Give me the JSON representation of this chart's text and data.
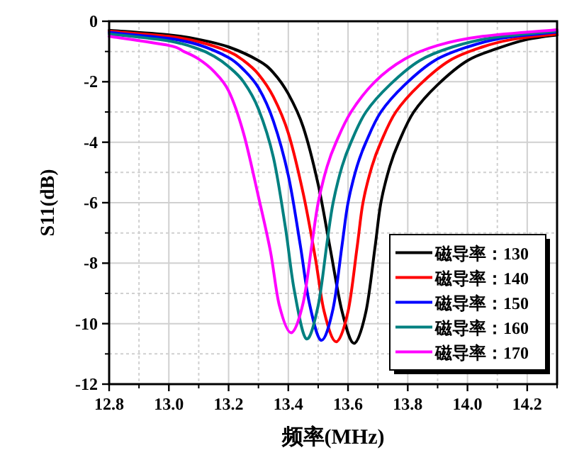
{
  "chart_data": {
    "type": "line",
    "xlabel": "频率(MHz)",
    "ylabel": "S11(dB)",
    "xlim": [
      12.8,
      14.3
    ],
    "ylim": [
      -12,
      0
    ],
    "xticks": [
      12.8,
      {
        "value": 13,
        "label": "13.0"
      },
      13.2,
      13.4,
      13.6,
      13.8,
      {
        "value": 14,
        "label": "14.0"
      },
      14.2
    ],
    "yticks": [
      -12,
      -10,
      -8,
      -6,
      -4,
      -2,
      0
    ],
    "grid": true,
    "legend": "bottom right",
    "marker": "none",
    "line_style": "solid",
    "series": [
      {
        "name": "磁导率：130",
        "color": "#000000",
        "x": [
          12.8,
          13.0,
          13.1,
          13.2,
          13.3,
          13.35,
          13.4,
          13.45,
          13.5,
          13.54,
          13.58,
          13.62,
          13.66,
          13.69,
          13.71,
          13.74,
          13.77,
          13.82,
          13.9,
          14.0,
          14.1,
          14.2,
          14.3
        ],
        "values": [
          -0.3,
          -0.45,
          -0.6,
          -0.85,
          -1.3,
          -1.7,
          -2.4,
          -3.5,
          -5.4,
          -7.5,
          -9.6,
          -10.65,
          -9.6,
          -7.5,
          -6.0,
          -4.8,
          -4.0,
          -3.0,
          -2.1,
          -1.3,
          -0.9,
          -0.6,
          -0.45
        ]
      },
      {
        "name": "磁导率：140",
        "color": "#ff0000",
        "x": [
          12.8,
          13.0,
          13.1,
          13.2,
          13.25,
          13.3,
          13.35,
          13.4,
          13.45,
          13.49,
          13.52,
          13.56,
          13.6,
          13.63,
          13.65,
          13.68,
          13.71,
          13.76,
          13.84,
          13.94,
          14.05,
          14.15,
          14.3
        ],
        "values": [
          -0.33,
          -0.5,
          -0.68,
          -1.0,
          -1.3,
          -1.75,
          -2.5,
          -3.7,
          -5.7,
          -7.8,
          -9.6,
          -10.6,
          -9.6,
          -7.5,
          -6.0,
          -4.8,
          -4.0,
          -3.0,
          -2.1,
          -1.3,
          -0.85,
          -0.6,
          -0.42
        ]
      },
      {
        "name": "磁导率：150",
        "color": "#0000ff",
        "x": [
          12.8,
          13.0,
          13.1,
          13.2,
          13.25,
          13.3,
          13.35,
          13.4,
          13.44,
          13.47,
          13.51,
          13.55,
          13.58,
          13.6,
          13.63,
          13.66,
          13.71,
          13.79,
          13.89,
          14.0,
          14.12,
          14.3
        ],
        "values": [
          -0.37,
          -0.57,
          -0.78,
          -1.2,
          -1.6,
          -2.2,
          -3.3,
          -5.1,
          -7.4,
          -9.3,
          -10.55,
          -9.5,
          -7.4,
          -6.0,
          -4.8,
          -4.0,
          -3.0,
          -2.1,
          -1.3,
          -0.85,
          -0.55,
          -0.36
        ]
      },
      {
        "name": "磁导率：160",
        "color": "#008080",
        "x": [
          12.8,
          13.0,
          13.1,
          13.15,
          13.2,
          13.25,
          13.3,
          13.35,
          13.39,
          13.42,
          13.46,
          13.5,
          13.53,
          13.55,
          13.58,
          13.61,
          13.66,
          13.74,
          13.84,
          13.95,
          14.08,
          14.3
        ],
        "values": [
          -0.42,
          -0.65,
          -0.92,
          -1.15,
          -1.5,
          -2.0,
          -2.9,
          -4.5,
          -6.8,
          -8.9,
          -10.5,
          -9.4,
          -7.3,
          -6.0,
          -4.8,
          -4.0,
          -3.0,
          -2.1,
          -1.3,
          -0.85,
          -0.55,
          -0.32
        ]
      },
      {
        "name": "磁导率：170",
        "color": "#ff00ff",
        "x": [
          12.8,
          13.0,
          13.05,
          13.1,
          13.15,
          13.2,
          13.25,
          13.3,
          13.34,
          13.37,
          13.41,
          13.45,
          13.48,
          13.5,
          13.53,
          13.56,
          13.61,
          13.69,
          13.79,
          13.9,
          14.05,
          14.3
        ],
        "values": [
          -0.5,
          -0.8,
          -1.0,
          -1.25,
          -1.65,
          -2.3,
          -3.7,
          -5.8,
          -7.6,
          -9.4,
          -10.3,
          -9.3,
          -7.3,
          -6.0,
          -4.8,
          -4.0,
          -3.0,
          -2.0,
          -1.25,
          -0.8,
          -0.5,
          -0.28
        ]
      }
    ]
  }
}
